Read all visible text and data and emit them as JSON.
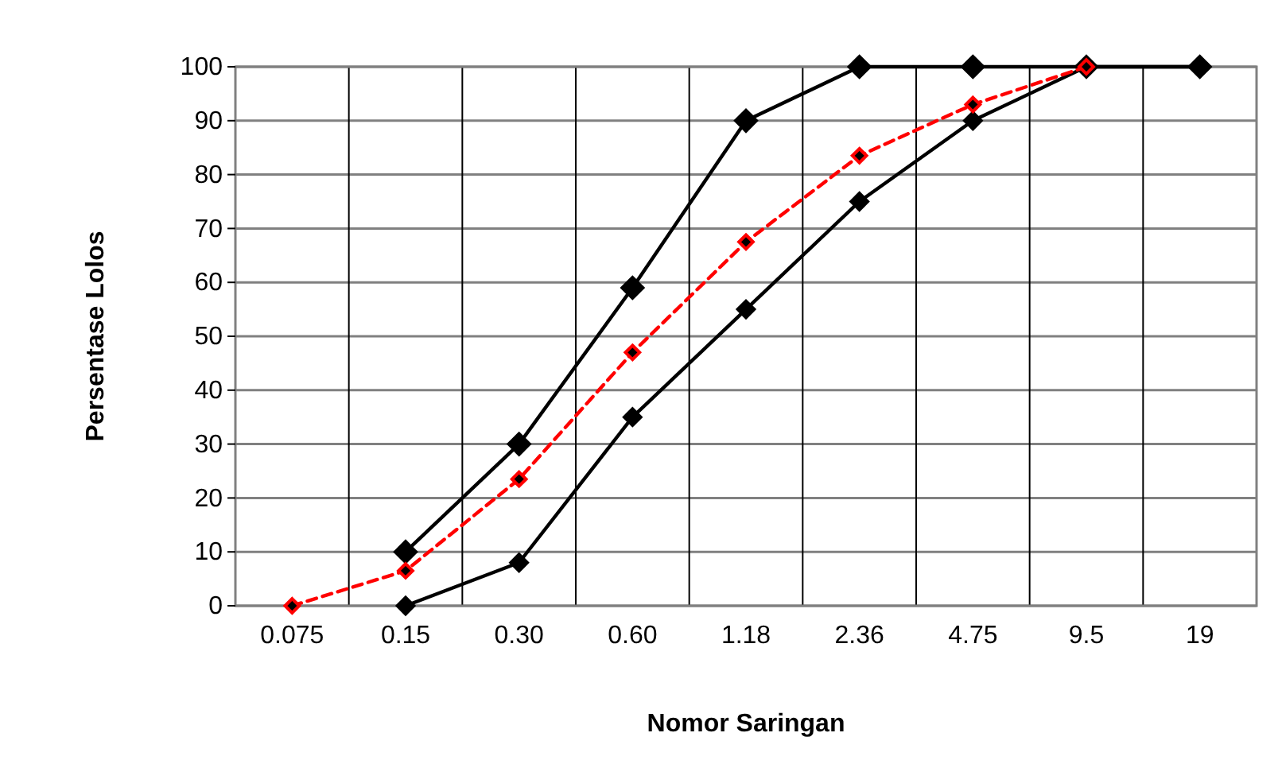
{
  "chart_data": {
    "type": "line",
    "xlabel": "Nomor Saringan",
    "ylabel": "Persentase Lolos",
    "categories": [
      "0.075",
      "0.15",
      "0.30",
      "0.60",
      "1.18",
      "2.36",
      "4.75",
      "9.5",
      "19"
    ],
    "series": [
      {
        "color": "#000000",
        "values": [
          null,
          10,
          30,
          59,
          90,
          100,
          100,
          100,
          100
        ],
        "line_style": "solid"
      },
      {
        "color": "#000000",
        "values": [
          null,
          0,
          8,
          35,
          55,
          75,
          90,
          100,
          100
        ],
        "line_style": "solid"
      },
      {
        "color": "#ff0000",
        "values": [
          0,
          6.5,
          23.5,
          47,
          67.5,
          83.5,
          93,
          100,
          null
        ],
        "line_style": "dashed"
      }
    ],
    "ylim": [
      0,
      100
    ],
    "yticks": [
      0,
      10,
      20,
      30,
      40,
      50,
      60,
      70,
      80,
      90,
      100
    ],
    "grid": true,
    "marker": "diamond"
  }
}
